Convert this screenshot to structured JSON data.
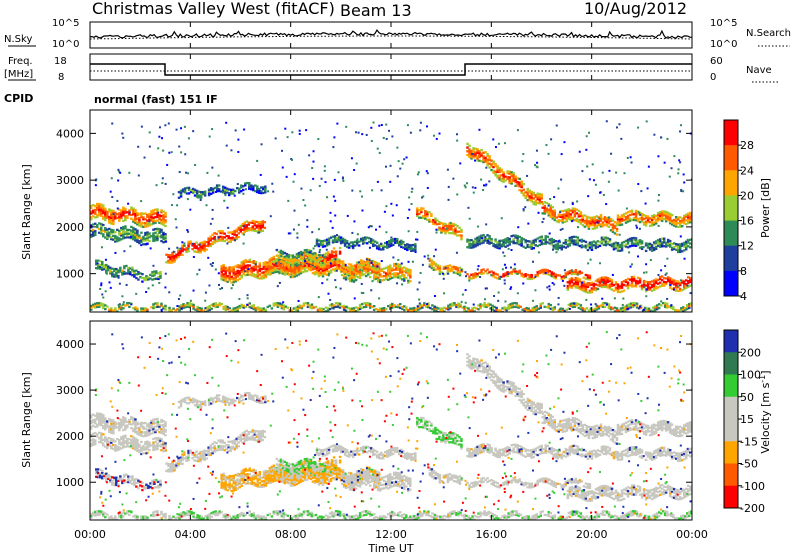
{
  "header": {
    "station": "Christmas Valley West (fitACF)",
    "beam": "Beam 13",
    "date": "10/Aug/2012"
  },
  "noise_panel": {
    "left_label": "N.Sky",
    "right_label": "N.Search",
    "left_ticks": [
      "10^5",
      "10^0"
    ],
    "right_ticks": [
      "10^5",
      "10^0"
    ]
  },
  "freq_panel": {
    "left_label_1": "Freq.",
    "left_label_2": "[MHz]",
    "right_label": "Nave",
    "left_ticks": [
      "18",
      "8"
    ],
    "right_ticks": [
      "60",
      "0"
    ]
  },
  "cpid": {
    "label": "CPID",
    "value": "normal (fast) 151 IF"
  },
  "chart_data": [
    {
      "type": "heatmap",
      "name": "power",
      "ylabel": "Slant Range [km]",
      "xlabel": "",
      "xlim": [
        0,
        24
      ],
      "ylim": [
        180,
        4500
      ],
      "yticks": [
        "1000",
        "2000",
        "3000",
        "4000"
      ],
      "xticks": [
        "00:00",
        "04:00",
        "08:00",
        "12:00",
        "16:00",
        "20:00",
        "00:00"
      ],
      "colorbar": {
        "label": "Power [dB]",
        "ticks": [
          "28",
          "24",
          "20",
          "16",
          "12",
          "8",
          "4"
        ],
        "colors": [
          "#ff0000",
          "#ff5a00",
          "#ffa500",
          "#9acd32",
          "#2e8b57",
          "#1f3f9e",
          "#0000ff"
        ]
      }
    },
    {
      "type": "heatmap",
      "name": "velocity",
      "ylabel": "Slant Range [km]",
      "xlabel": "Time UT",
      "xlim": [
        0,
        24
      ],
      "ylim": [
        180,
        4500
      ],
      "yticks": [
        "1000",
        "2000",
        "3000",
        "4000"
      ],
      "xticks": [
        "00:00",
        "04:00",
        "08:00",
        "12:00",
        "16:00",
        "20:00",
        "00:00"
      ],
      "colorbar": {
        "label": "Velocity [m s",
        "label_sup": "-1",
        "label_end": "]",
        "ticks": [
          "200",
          "100",
          "50",
          "15",
          "-15",
          "-50",
          "-100",
          "-200"
        ],
        "colors": [
          "#1f2fb0",
          "#2f7a50",
          "#33cc33",
          "#c8c8c0",
          "#c8c8c0",
          "#ffa500",
          "#ff5a00",
          "#ff0000"
        ]
      }
    }
  ]
}
